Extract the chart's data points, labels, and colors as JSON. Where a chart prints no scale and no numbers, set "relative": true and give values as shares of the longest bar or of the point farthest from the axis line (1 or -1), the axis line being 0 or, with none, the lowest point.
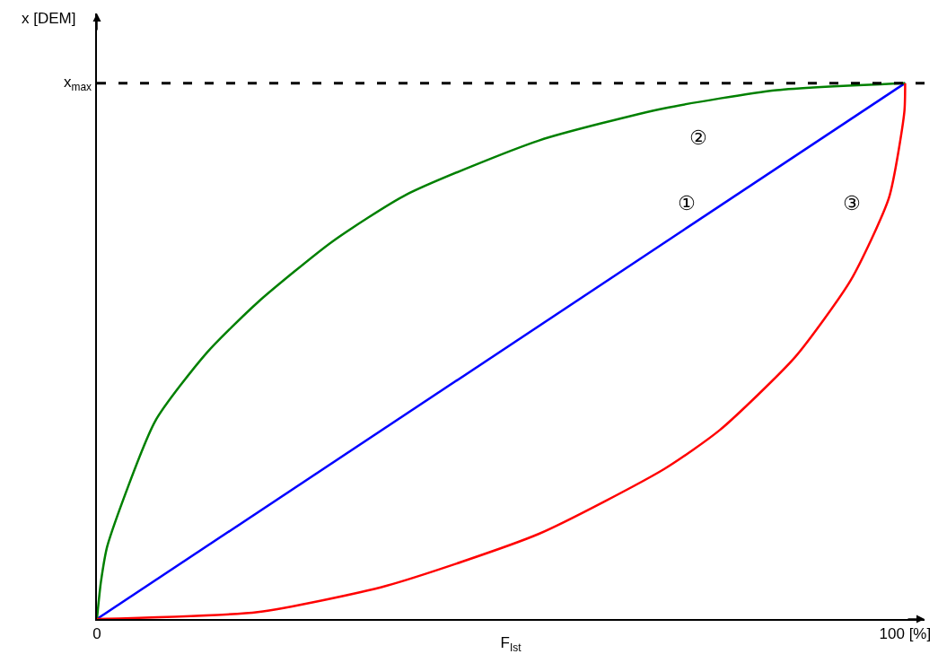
{
  "chart_data": {
    "type": "line",
    "relative": true,
    "xlabel": "F$_{Ist}$",
    "ylabel": "x [DEM]",
    "xlim": [
      0,
      102.4
    ],
    "xticks": [
      0,
      {
        "value": 100,
        "label": "100 [%]"
      }
    ],
    "series": [
      {
        "name": "①",
        "color": "#0000ff",
        "x": [
          0,
          100
        ],
        "values": [
          0,
          1
        ]
      },
      {
        "name": "②",
        "color": "#008000",
        "x": [
          0,
          0.5,
          1.3,
          7.2,
          13.6,
          19.9,
          29.1,
          38.3,
          54.7,
          70.2,
          84.1,
          100
        ],
        "values": [
          0,
          0.07,
          0.137,
          0.369,
          0.497,
          0.591,
          0.704,
          0.792,
          0.893,
          0.953,
          0.987,
          1
        ]
      },
      {
        "name": "③",
        "color": "#ff0000",
        "x": [
          0,
          19.9,
          35.8,
          54.7,
          70.2,
          77.1,
          86.4,
          93.3,
          98,
          99.9,
          100
        ],
        "values": [
          0,
          0.013,
          0.062,
          0.159,
          0.28,
          0.353,
          0.489,
          0.633,
          0.786,
          0.946,
          1
        ]
      }
    ],
    "ref_lines": [
      {
        "axis": "y",
        "value": 1,
        "label": "x$_{max}$",
        "color": "#000000",
        "line_style": "dashed"
      }
    ],
    "grid": false,
    "legend": false,
    "marker": "none",
    "line_style": "solid"
  }
}
